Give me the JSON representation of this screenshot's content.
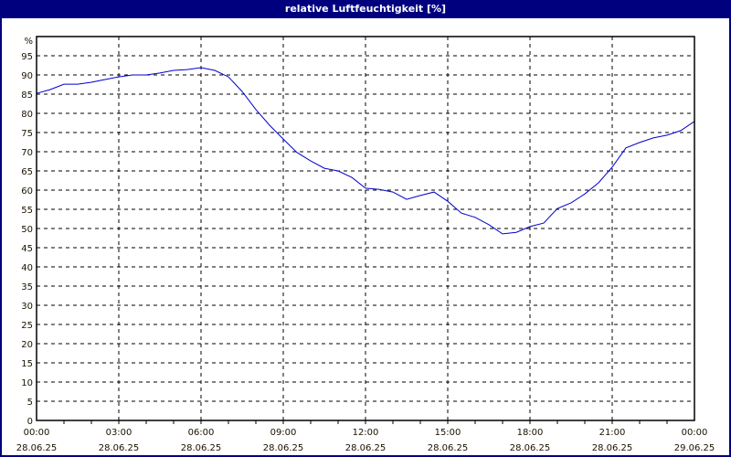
{
  "window": {
    "title": "relative Luftfeuchtigkeit [%]"
  },
  "colors": {
    "titlebar": "#00007f",
    "line": "#0000cc",
    "grid": "#000000",
    "frame": "#00007f"
  },
  "chart_data": {
    "type": "line",
    "title": "relative Luftfeuchtigkeit [%]",
    "xlabel": "",
    "ylabel": "%",
    "ylim": [
      0,
      100
    ],
    "xlim_hours": [
      0,
      24
    ],
    "grid": true,
    "y_ticks": [
      0,
      5,
      10,
      15,
      20,
      25,
      30,
      35,
      40,
      45,
      50,
      55,
      60,
      65,
      70,
      75,
      80,
      85,
      90,
      95
    ],
    "x_ticks": [
      {
        "time": "00:00",
        "date": "28.06.25"
      },
      {
        "time": "03:00",
        "date": "28.06.25"
      },
      {
        "time": "06:00",
        "date": "28.06.25"
      },
      {
        "time": "09:00",
        "date": "28.06.25"
      },
      {
        "time": "12:00",
        "date": "28.06.25"
      },
      {
        "time": "15:00",
        "date": "28.06.25"
      },
      {
        "time": "18:00",
        "date": "28.06.25"
      },
      {
        "time": "21:00",
        "date": "28.06.25"
      },
      {
        "time": "00:00",
        "date": "29.06.25"
      }
    ],
    "series": [
      {
        "name": "relative Luftfeuchtigkeit",
        "x_hours": [
          0,
          0.5,
          1,
          1.5,
          2,
          2.5,
          3,
          3.5,
          4,
          4.5,
          5,
          5.5,
          6,
          6.5,
          7,
          7.5,
          8,
          8.5,
          9,
          9.5,
          10,
          10.5,
          11,
          11.5,
          12,
          12.5,
          13,
          13.5,
          14,
          14.5,
          15,
          15.5,
          16,
          16.5,
          17,
          17.5,
          18,
          18.5,
          19,
          19.5,
          20,
          20.5,
          21,
          21.5,
          22,
          22.5,
          23,
          23.5,
          24
        ],
        "values": [
          85.2,
          86.2,
          87.6,
          87.6,
          88.1,
          88.8,
          89.5,
          90.0,
          90.0,
          90.5,
          91.2,
          91.4,
          91.9,
          91.2,
          89.5,
          85.7,
          81.0,
          76.9,
          73.3,
          69.8,
          67.6,
          65.7,
          65.0,
          63.3,
          60.5,
          60.2,
          59.5,
          57.6,
          58.6,
          59.5,
          57.1,
          54.0,
          52.9,
          51.0,
          48.6,
          49.0,
          50.5,
          51.4,
          55.2,
          56.7,
          59.0,
          61.9,
          66.0,
          71.0,
          72.4,
          73.6,
          74.3,
          75.5,
          77.9
        ]
      }
    ]
  }
}
